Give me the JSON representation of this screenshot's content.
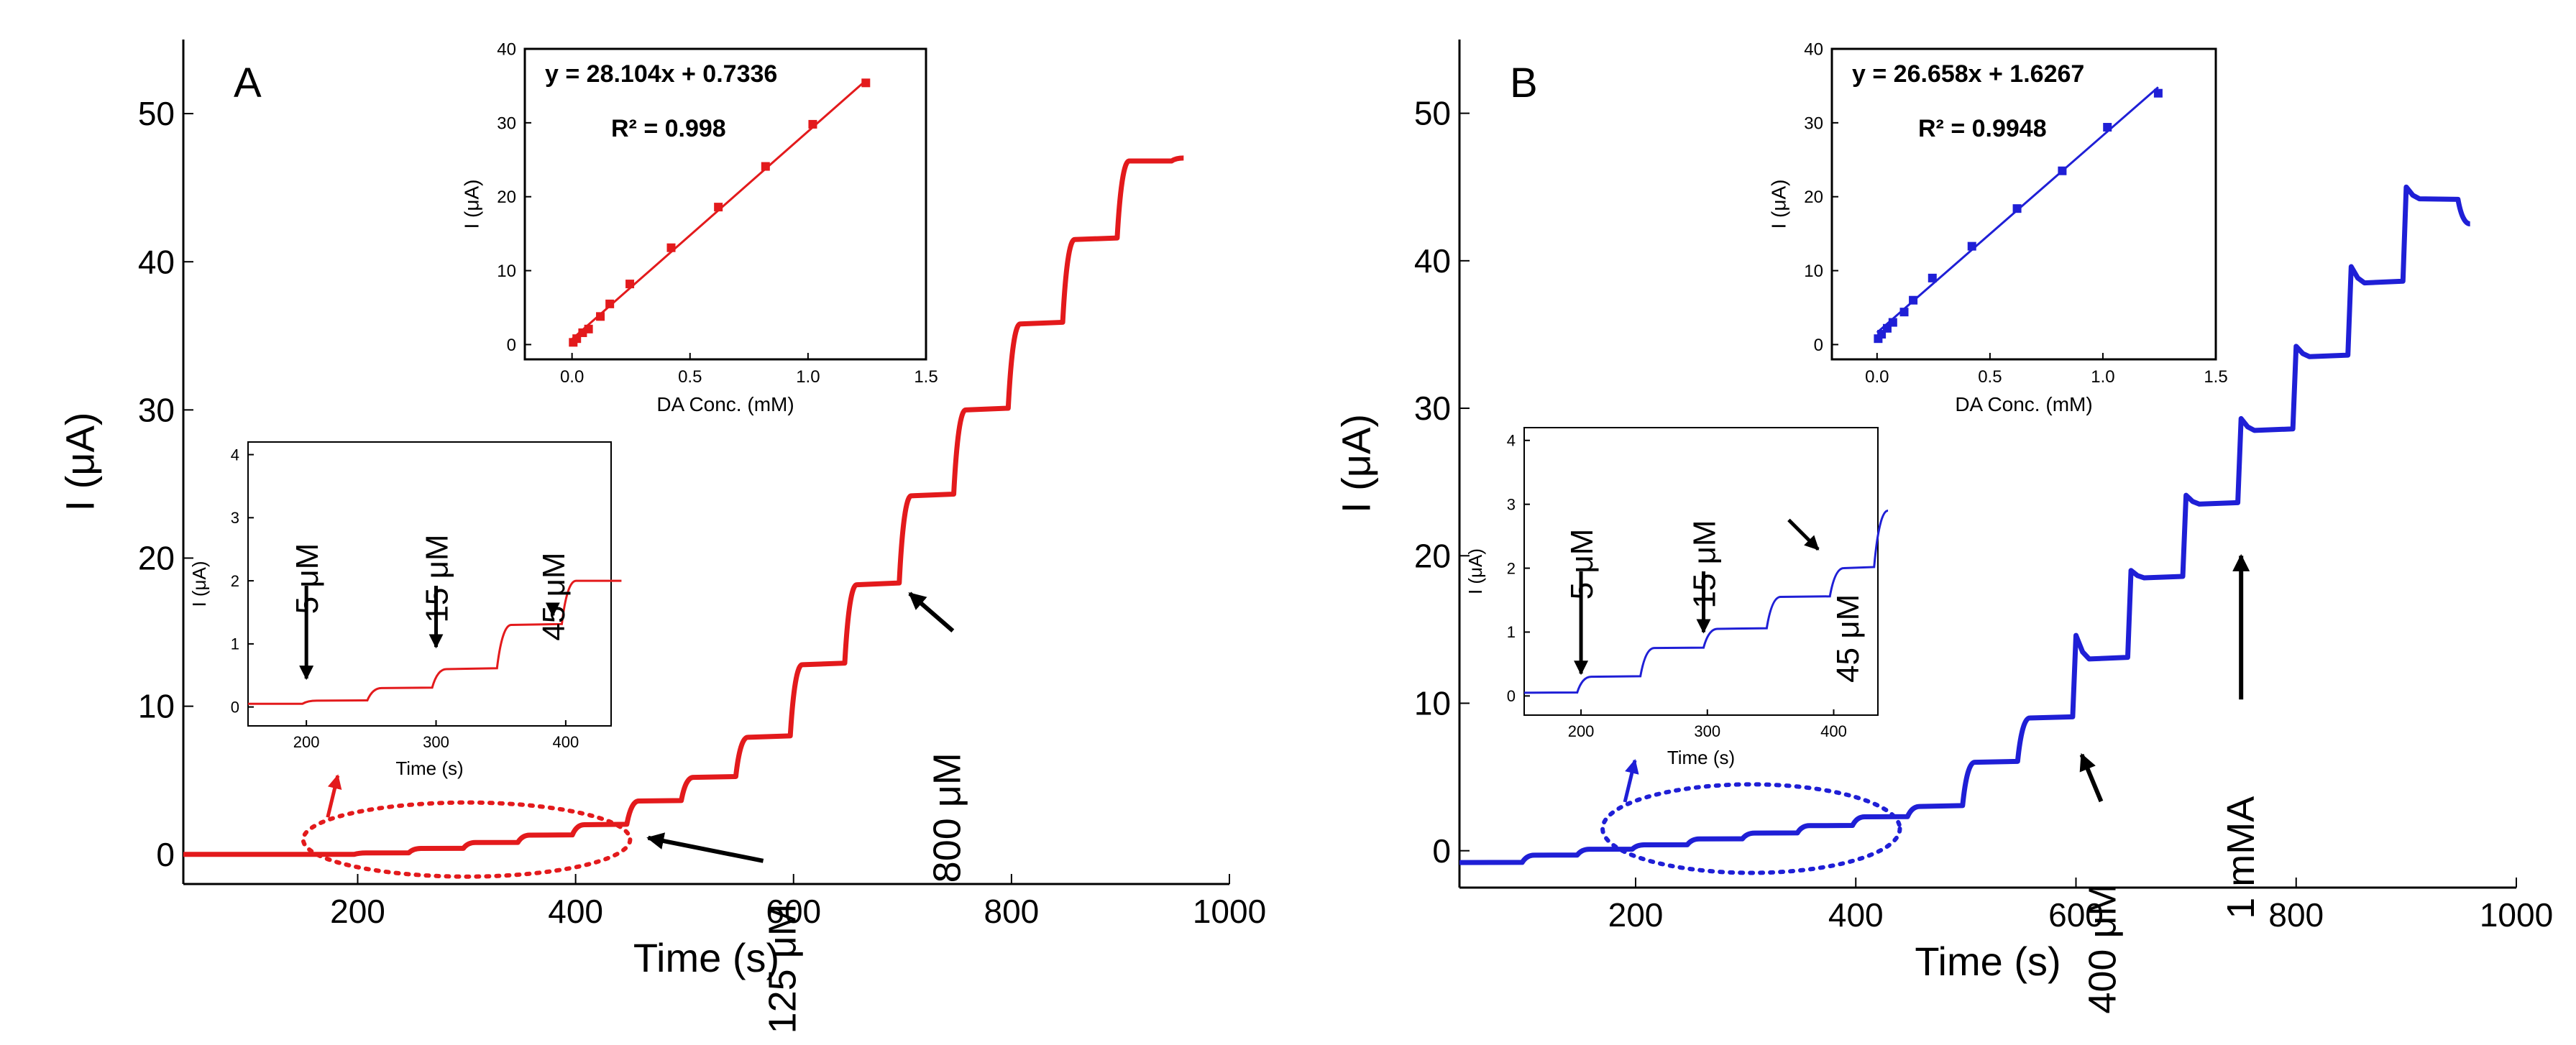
{
  "colors": {
    "panel_a": "#e31a1c",
    "panel_b": "#1f1fd6",
    "arrow": "#000000"
  },
  "chart_data": [
    {
      "id": "A-main",
      "panel_label": "A",
      "type": "line",
      "xlabel": "Time (s)",
      "ylabel": "I (μA)",
      "xlim": [
        40,
        1000
      ],
      "ylim": [
        -2,
        55
      ],
      "xticks": [
        200,
        400,
        600,
        800,
        1000
      ],
      "yticks": [
        0,
        10,
        20,
        30,
        40,
        50
      ],
      "steps": [
        [
          40,
          0
        ],
        [
          100,
          0
        ],
        [
          150,
          0
        ],
        [
          200,
          0.1
        ],
        [
          250,
          0.4
        ],
        [
          300,
          0.8
        ],
        [
          350,
          1.3
        ],
        [
          400,
          2.0
        ],
        [
          450,
          3.6
        ],
        [
          500,
          5.2
        ],
        [
          550,
          7.9
        ],
        [
          600,
          12.8
        ],
        [
          650,
          18.2
        ],
        [
          700,
          24.2
        ],
        [
          750,
          30.0
        ],
        [
          800,
          35.8
        ],
        [
          850,
          41.5
        ],
        [
          900,
          46.8
        ],
        [
          950,
          47.0
        ]
      ],
      "overshoot": [],
      "annotations": [
        {
          "label": "125 μM",
          "x": 460,
          "y": 1.5
        },
        {
          "label": "800 μM",
          "x": 700,
          "y": 18
        }
      ],
      "ellipse": {
        "x_center": 300,
        "y_center": 1.0,
        "x_half": 150,
        "y_half": 2.5
      }
    },
    {
      "id": "A-inset-line",
      "type": "line",
      "xlabel": "Time (s)",
      "ylabel": "I (μA)",
      "xlim": [
        155,
        435
      ],
      "ylim": [
        -0.3,
        4.2
      ],
      "xticks": [
        200,
        300,
        400
      ],
      "yticks": [
        0,
        1,
        2,
        3,
        4
      ],
      "steps": [
        [
          155,
          0.05
        ],
        [
          200,
          0.1
        ],
        [
          250,
          0.3
        ],
        [
          300,
          0.6
        ],
        [
          350,
          1.3
        ],
        [
          400,
          2.0
        ],
        [
          435,
          2.0
        ]
      ],
      "arrows": [
        {
          "label": "5 μM",
          "x": 200,
          "y_tip": 0.45
        },
        {
          "label": "15 μM",
          "x": 300,
          "y_tip": 0.95
        },
        {
          "label": "45 μM",
          "x": 390,
          "y_tip": 1.45
        }
      ]
    },
    {
      "id": "A-inset-fit",
      "type": "scatter",
      "xlabel": "DA Conc. (mM)",
      "ylabel": "I (μA)",
      "xlim": [
        -0.2,
        1.5
      ],
      "ylim": [
        -2,
        40
      ],
      "xticks": [
        0.0,
        0.5,
        1.0,
        1.5
      ],
      "yticks": [
        0,
        10,
        20,
        30,
        40
      ],
      "x": [
        0.005,
        0.02,
        0.045,
        0.07,
        0.12,
        0.16,
        0.245,
        0.42,
        0.62,
        0.82,
        1.02,
        1.245
      ],
      "y": [
        0.3,
        0.8,
        1.6,
        2.1,
        3.8,
        5.5,
        8.2,
        13.1,
        18.6,
        24.1,
        29.8,
        35.4
      ],
      "fit": {
        "slope": 28.104,
        "intercept": 0.7336
      },
      "equation": "y = 28.104x + 0.7336",
      "r2": "R² = 0.998"
    },
    {
      "id": "B-main",
      "panel_label": "B",
      "type": "line",
      "xlabel": "Time (s)",
      "ylabel": "I (μA)",
      "xlim": [
        40,
        1000
      ],
      "ylim": [
        -2.5,
        55
      ],
      "xticks": [
        200,
        400,
        600,
        800,
        1000
      ],
      "yticks": [
        0,
        10,
        20,
        30,
        40,
        50
      ],
      "steps": [
        [
          40,
          -0.8
        ],
        [
          100,
          -0.3
        ],
        [
          150,
          0.1
        ],
        [
          200,
          0.4
        ],
        [
          250,
          0.8
        ],
        [
          300,
          1.2
        ],
        [
          350,
          1.7
        ],
        [
          400,
          2.3
        ],
        [
          450,
          3.0
        ],
        [
          500,
          6.0
        ],
        [
          550,
          9.0
        ],
        [
          600,
          13.0
        ],
        [
          650,
          18.5
        ],
        [
          700,
          23.5
        ],
        [
          750,
          28.5
        ],
        [
          800,
          33.5
        ],
        [
          850,
          38.5
        ],
        [
          900,
          44.2
        ],
        [
          950,
          42.5
        ]
      ],
      "overshoot": [
        [
          600,
          14.6
        ],
        [
          650,
          19.0
        ],
        [
          700,
          24.1
        ],
        [
          750,
          29.3
        ],
        [
          800,
          34.2
        ],
        [
          850,
          39.6
        ],
        [
          900,
          45.0
        ]
      ],
      "annotations": [
        {
          "label": "400 μM",
          "x": 600,
          "y": 7
        },
        {
          "label": "1 mMA",
          "x": 750,
          "y": 20
        }
      ],
      "ellipse": {
        "x_center": 305,
        "y_center": 1.5,
        "x_half": 135,
        "y_half": 3.0
      }
    },
    {
      "id": "B-inset-line",
      "type": "line",
      "xlabel": "Time (s)",
      "ylabel": "I (μA)",
      "xlim": [
        155,
        435
      ],
      "ylim": [
        -0.3,
        4.2
      ],
      "xticks": [
        200,
        300,
        400
      ],
      "yticks": [
        0,
        1,
        2,
        3,
        4
      ],
      "steps": [
        [
          155,
          0.05
        ],
        [
          200,
          0.3
        ],
        [
          250,
          0.75
        ],
        [
          300,
          1.05
        ],
        [
          350,
          1.55
        ],
        [
          400,
          2.0
        ],
        [
          435,
          2.9
        ]
      ],
      "arrows": [
        {
          "label": "5 μM",
          "x": 200,
          "y_tip": 0.35
        },
        {
          "label": "15 μM",
          "x": 297,
          "y_tip": 1.0
        },
        {
          "label": "45 μM",
          "x": 390,
          "y_tip": 2.25
        }
      ]
    },
    {
      "id": "B-inset-fit",
      "type": "scatter",
      "xlabel": "DA Conc. (mM)",
      "ylabel": "I (μA)",
      "xlim": [
        -0.2,
        1.5
      ],
      "ylim": [
        -2,
        40
      ],
      "xticks": [
        0.0,
        0.5,
        1.0,
        1.5
      ],
      "yticks": [
        0,
        10,
        20,
        30,
        40
      ],
      "x": [
        0.005,
        0.02,
        0.045,
        0.07,
        0.12,
        0.16,
        0.245,
        0.42,
        0.62,
        0.82,
        1.02,
        1.245
      ],
      "y": [
        0.8,
        1.4,
        2.2,
        3.0,
        4.4,
        6.0,
        9.0,
        13.3,
        18.4,
        23.5,
        29.4,
        34.0
      ],
      "fit": {
        "slope": 26.658,
        "intercept": 1.6267
      },
      "equation": "y = 26.658x + 1.6267",
      "r2": "R² = 0.9948"
    }
  ]
}
